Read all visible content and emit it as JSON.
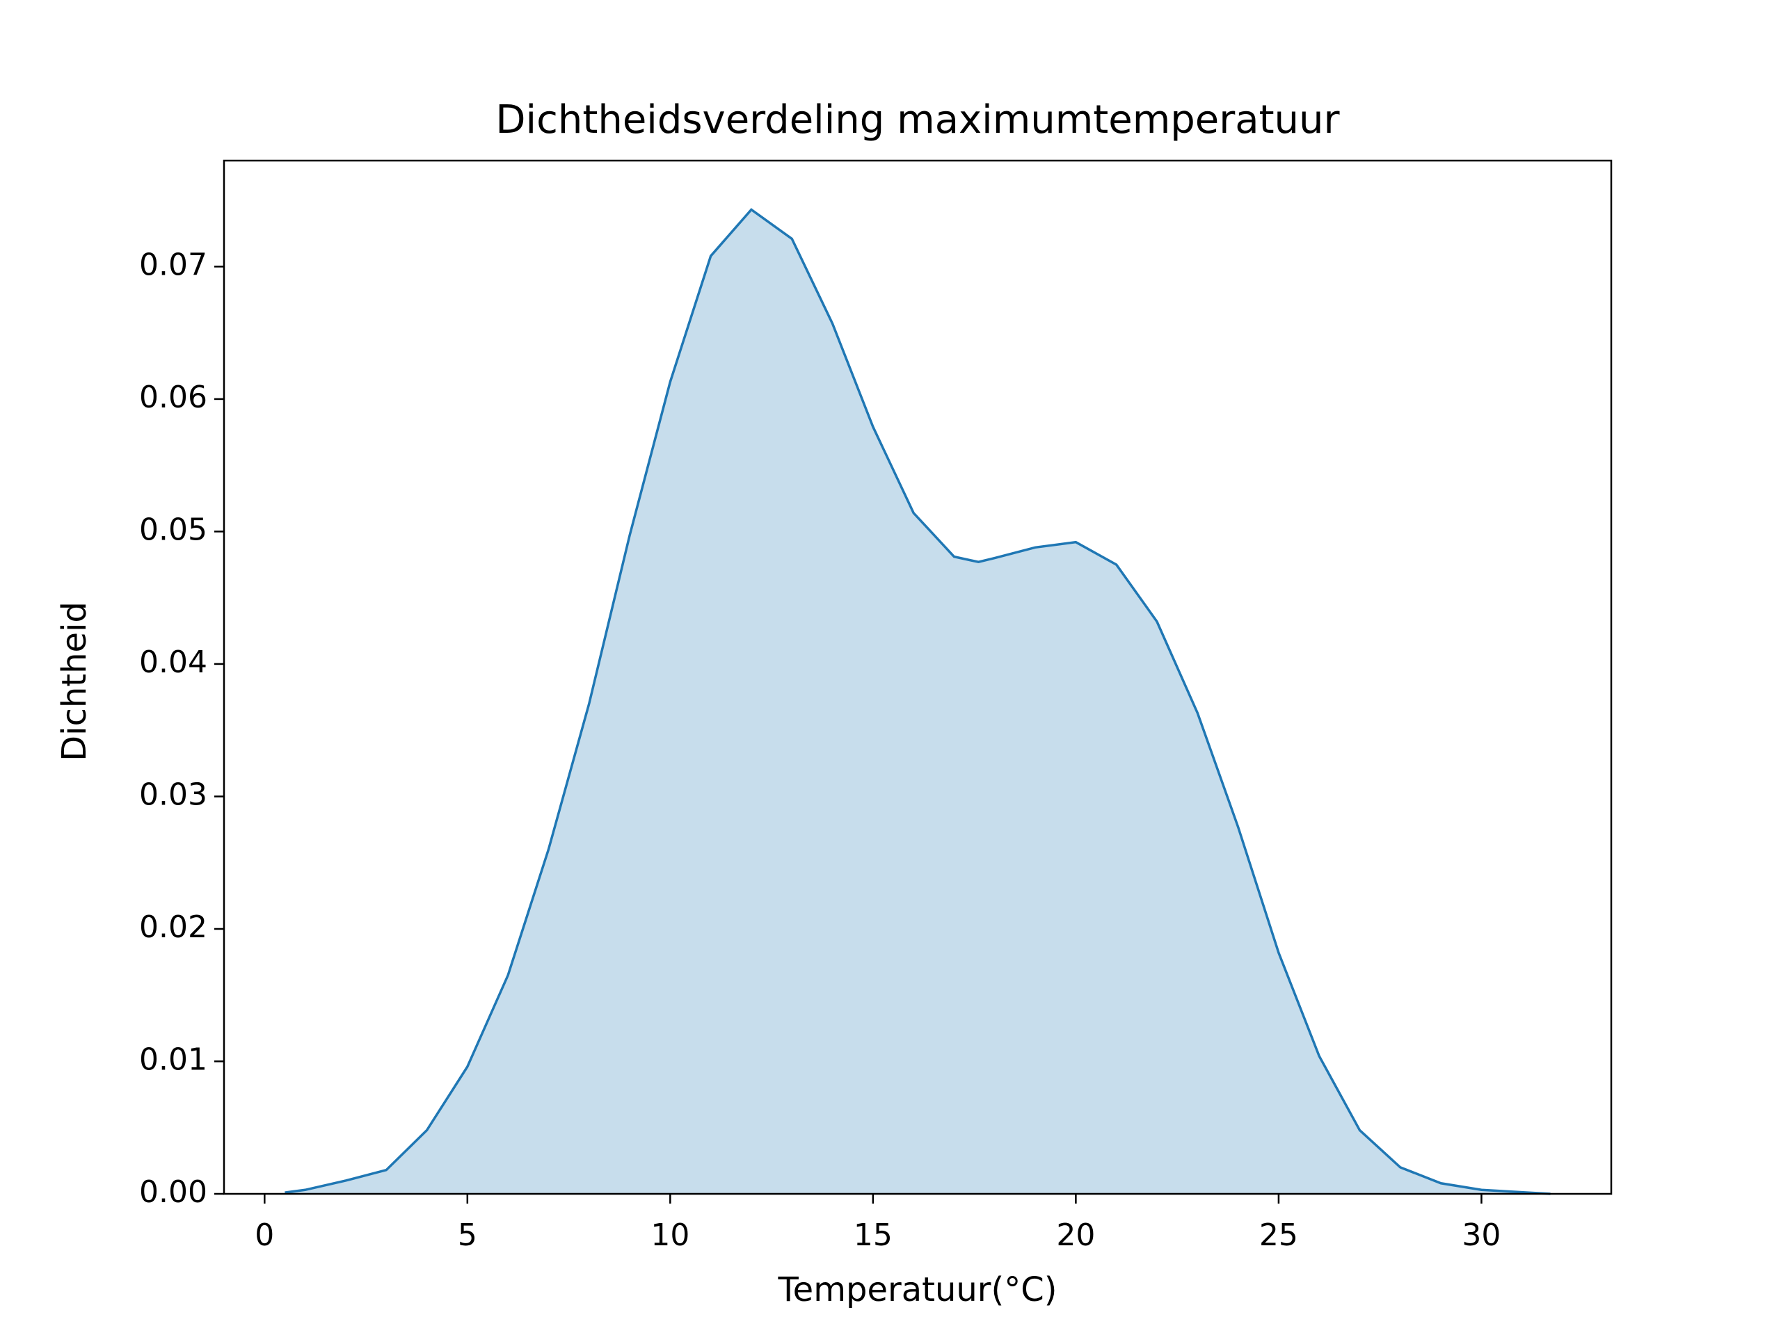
{
  "chart_data": {
    "type": "area",
    "title": "Dichtheidsverdeling maximumtemperatuur",
    "x_label": "Temperatuur(°C)",
    "y_label": "Dichtheid",
    "color": "#1f77b4",
    "x": [
      0.5,
      1,
      2,
      3,
      4,
      5,
      6,
      7,
      8,
      9,
      10,
      11,
      12,
      13,
      14,
      15,
      16,
      17,
      17.6,
      18,
      19,
      20,
      21,
      22,
      23,
      24,
      25,
      26,
      27,
      28,
      29,
      30,
      31.7
    ],
    "values": [
      0.0001,
      0.0003,
      0.001,
      0.0018,
      0.0048,
      0.0096,
      0.0165,
      0.026,
      0.037,
      0.0497,
      0.0613,
      0.0708,
      0.0743,
      0.0721,
      0.0657,
      0.0579,
      0.0514,
      0.0481,
      0.0477,
      0.048,
      0.0488,
      0.0492,
      0.0475,
      0.0432,
      0.0363,
      0.0277,
      0.0182,
      0.0104,
      0.0048,
      0.002,
      0.0008,
      0.0003,
      0
    ],
    "xlim": [
      -1.0,
      33.2
    ],
    "ylim": [
      0,
      0.078
    ],
    "xticks": [
      0,
      5,
      10,
      15,
      20,
      25,
      30
    ],
    "yticks": [
      {
        "value": 0,
        "label": "0.00"
      },
      0.01,
      0.02,
      0.03,
      0.04,
      0.05,
      0.06,
      0.07
    ],
    "grid": false
  }
}
